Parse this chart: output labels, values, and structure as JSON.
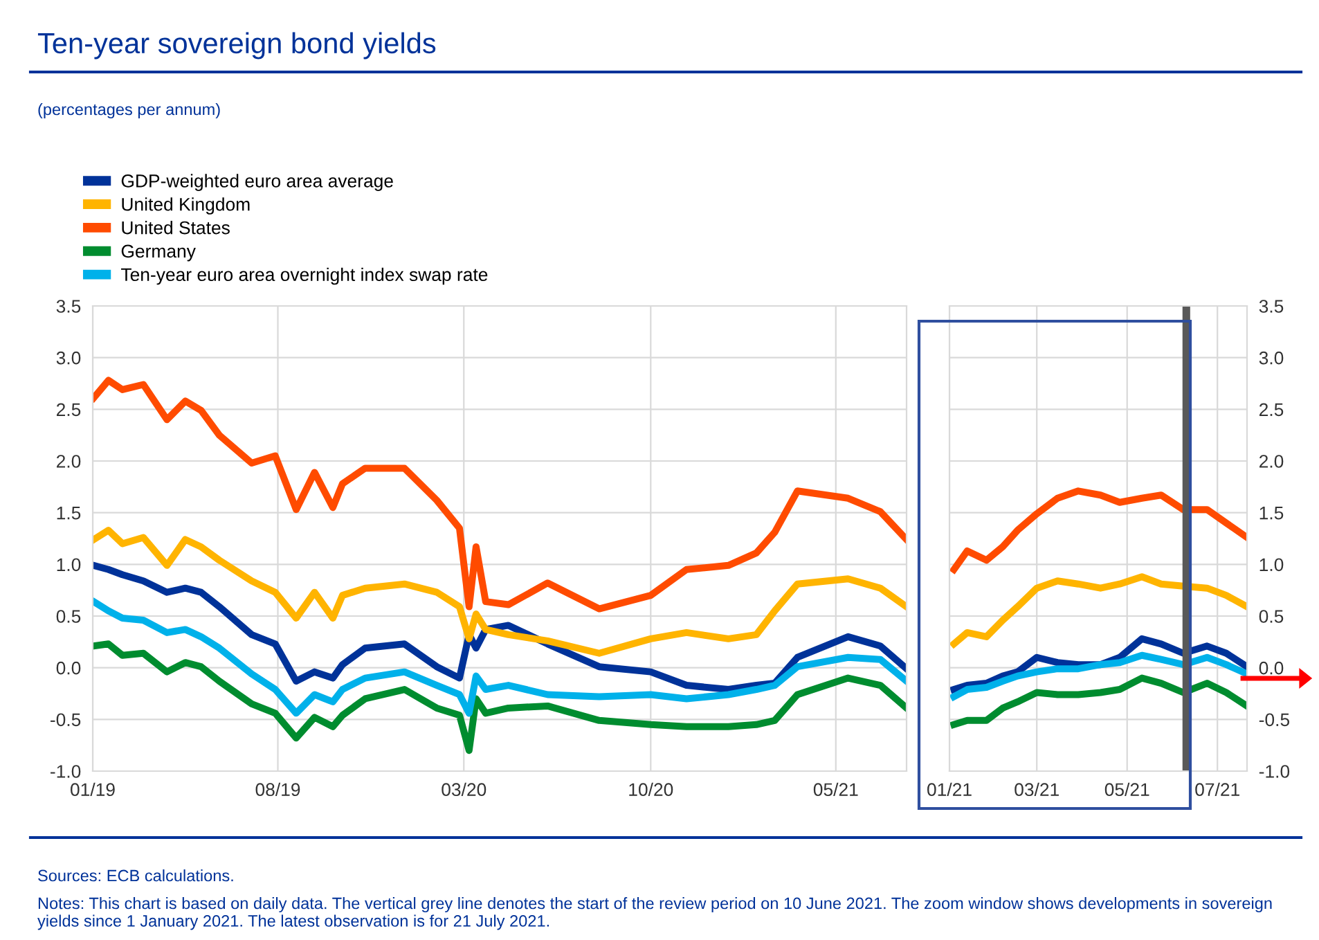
{
  "chart_data": [
    {
      "type": "line",
      "title": "Ten-year sovereign bond yields",
      "subtitle": "(percentages per annum)",
      "annotations": [
        "Sources: ECB calculations.",
        "Notes: This chart is based on daily data. The vertical grey line denotes the start of the review period on 10 June 2021. The zoom window shows developments in sovereign yields since 1 January 2021. The latest observation is for 21 July 2021."
      ],
      "x": [
        "2019-01-02",
        "2019-01-19",
        "2019-02-04",
        "2019-02-28",
        "2019-03-27",
        "2019-04-17",
        "2019-05-05",
        "2019-05-26",
        "2019-07-02",
        "2019-07-29",
        "2019-08-22",
        "2019-09-12",
        "2019-10-03",
        "2019-10-14",
        "2019-11-09",
        "2019-12-24",
        "2020-01-30",
        "2020-02-25",
        "2020-03-07",
        "2020-03-15",
        "2020-03-26",
        "2020-04-21",
        "2020-06-05",
        "2020-08-03",
        "2020-10-01",
        "2020-11-11",
        "2020-12-29",
        "2021-01-30",
        "2021-02-20",
        "2021-03-18",
        "2021-05-15",
        "2021-06-21",
        "2021-07-21"
      ],
      "series": [
        {
          "name": "GDP-weighted euro area average",
          "color": "#003299",
          "values": [
            0.99,
            0.95,
            0.9,
            0.84,
            0.73,
            0.77,
            0.73,
            0.59,
            0.32,
            0.23,
            -0.13,
            -0.04,
            -0.1,
            0.03,
            0.19,
            0.23,
            0.01,
            -0.1,
            0.32,
            0.19,
            0.37,
            0.41,
            0.23,
            0.01,
            -0.04,
            -0.17,
            -0.21,
            -0.17,
            -0.15,
            0.1,
            0.3,
            0.21,
            -0.01
          ]
        },
        {
          "name": "United Kingdom",
          "color": "#ffb400",
          "values": [
            1.24,
            1.33,
            1.2,
            1.26,
            0.99,
            1.24,
            1.17,
            1.04,
            0.84,
            0.73,
            0.48,
            0.73,
            0.48,
            0.7,
            0.77,
            0.81,
            0.73,
            0.59,
            0.28,
            0.52,
            0.37,
            0.32,
            0.26,
            0.14,
            0.28,
            0.34,
            0.28,
            0.32,
            0.55,
            0.81,
            0.86,
            0.77,
            0.59
          ]
        },
        {
          "name": "United States",
          "color": "#ff4b00",
          "values": [
            2.61,
            2.78,
            2.69,
            2.74,
            2.4,
            2.58,
            2.49,
            2.25,
            1.98,
            2.05,
            1.53,
            1.89,
            1.55,
            1.78,
            1.93,
            1.93,
            1.62,
            1.35,
            0.59,
            1.17,
            0.64,
            0.61,
            0.82,
            0.57,
            0.7,
            0.95,
            0.99,
            1.11,
            1.31,
            1.71,
            1.64,
            1.51,
            1.24
          ]
        },
        {
          "name": "Germany",
          "color": "#008c2f",
          "values": [
            0.21,
            0.23,
            0.12,
            0.14,
            -0.04,
            0.05,
            0.01,
            -0.13,
            -0.35,
            -0.44,
            -0.68,
            -0.48,
            -0.57,
            -0.46,
            -0.3,
            -0.21,
            -0.39,
            -0.46,
            -0.8,
            -0.3,
            -0.44,
            -0.39,
            -0.37,
            -0.51,
            -0.55,
            -0.57,
            -0.57,
            -0.55,
            -0.51,
            -0.26,
            -0.1,
            -0.17,
            -0.39
          ]
        },
        {
          "name": "Ten-year euro area overnight index swap rate",
          "color": "#00b1ea",
          "values": [
            0.64,
            0.55,
            0.48,
            0.46,
            0.34,
            0.37,
            0.3,
            0.19,
            -0.06,
            -0.21,
            -0.44,
            -0.26,
            -0.33,
            -0.21,
            -0.1,
            -0.04,
            -0.17,
            -0.26,
            -0.44,
            -0.08,
            -0.21,
            -0.17,
            -0.26,
            -0.28,
            -0.26,
            -0.3,
            -0.26,
            -0.21,
            -0.17,
            0.01,
            0.1,
            0.08,
            -0.13
          ]
        }
      ],
      "xlim": [
        "2019-01-01",
        "2021-07-21"
      ],
      "ylim": [
        -1.0,
        3.5
      ],
      "xticks": [
        {
          "value": "2019-01-01",
          "label": "01/19"
        },
        {
          "value": "2019-08-01",
          "label": "08/19"
        },
        {
          "value": "2020-03-01",
          "label": "03/20"
        },
        {
          "value": "2020-10-01",
          "label": "10/20"
        },
        {
          "value": "2021-05-01",
          "label": "05/21"
        }
      ],
      "yticks": [
        {
          "value": -1.0,
          "label": "-1.0"
        },
        {
          "value": -0.5,
          "label": "-0.5"
        },
        {
          "value": 0.0,
          "label": "0.0"
        },
        {
          "value": 0.5,
          "label": "0.5"
        },
        {
          "value": 1.0,
          "label": "1.0"
        },
        {
          "value": 1.5,
          "label": "1.5"
        },
        {
          "value": 2.0,
          "label": "2.0"
        },
        {
          "value": 2.5,
          "label": "2.5"
        },
        {
          "value": 3.0,
          "label": "3.0"
        },
        {
          "value": 3.5,
          "label": "3.5"
        }
      ],
      "grid": true,
      "legend": "top left"
    },
    {
      "type": "line",
      "x": [
        "2021-01-04",
        "2021-01-13",
        "2021-01-26",
        "2021-02-06",
        "2021-02-16",
        "2021-03-01",
        "2021-03-15",
        "2021-03-29",
        "2021-04-13",
        "2021-04-26",
        "2021-05-11",
        "2021-05-24",
        "2021-06-08",
        "2021-06-24",
        "2021-07-07",
        "2021-07-21"
      ],
      "series": [
        {
          "color": "#003299",
          "values": [
            -0.21,
            -0.17,
            -0.15,
            -0.08,
            -0.04,
            0.1,
            0.05,
            0.03,
            0.03,
            0.1,
            0.28,
            0.23,
            0.14,
            0.21,
            0.14,
            0.01
          ]
        },
        {
          "color": "#ffb400",
          "values": [
            0.23,
            0.34,
            0.3,
            0.46,
            0.59,
            0.77,
            0.84,
            0.81,
            0.77,
            0.81,
            0.88,
            0.81,
            0.79,
            0.77,
            0.7,
            0.59
          ]
        },
        {
          "color": "#ff4b00",
          "values": [
            0.95,
            1.13,
            1.04,
            1.17,
            1.33,
            1.49,
            1.64,
            1.71,
            1.67,
            1.6,
            1.64,
            1.67,
            1.53,
            1.53,
            1.4,
            1.26
          ]
        },
        {
          "color": "#008c2f",
          "values": [
            -0.55,
            -0.51,
            -0.51,
            -0.39,
            -0.33,
            -0.24,
            -0.26,
            -0.26,
            -0.24,
            -0.21,
            -0.1,
            -0.15,
            -0.24,
            -0.15,
            -0.24,
            -0.37
          ]
        },
        {
          "color": "#00b1ea",
          "values": [
            -0.28,
            -0.21,
            -0.19,
            -0.13,
            -0.08,
            -0.04,
            -0.01,
            -0.01,
            0.03,
            0.05,
            0.12,
            0.08,
            0.03,
            0.1,
            0.03,
            -0.06
          ]
        }
      ],
      "xlim": [
        "2021-01-01",
        "2021-07-21"
      ],
      "ylim": [
        -1.0,
        3.5
      ],
      "xticks": [
        {
          "value": "2021-01-01",
          "label": "01/21"
        },
        {
          "value": "2021-03-01",
          "label": "03/21"
        },
        {
          "value": "2021-05-01",
          "label": "05/21"
        },
        {
          "value": "2021-07-01",
          "label": "07/21"
        }
      ],
      "yticks": [
        {
          "value": -1.0,
          "label": "-1.0"
        },
        {
          "value": -0.5,
          "label": "-0.5"
        },
        {
          "value": 0.0,
          "label": "0.0"
        },
        {
          "value": 0.5,
          "label": "0.5"
        },
        {
          "value": 1.0,
          "label": "1.0"
        },
        {
          "value": 1.5,
          "label": "1.5"
        },
        {
          "value": 2.0,
          "label": "2.0"
        },
        {
          "value": 2.5,
          "label": "2.5"
        },
        {
          "value": 3.0,
          "label": "3.0"
        },
        {
          "value": 3.5,
          "label": "3.5"
        }
      ],
      "grid": true,
      "ref_lines": [
        {
          "axis": "x",
          "value": "2021-06-10",
          "color": "#595959"
        }
      ]
    }
  ]
}
